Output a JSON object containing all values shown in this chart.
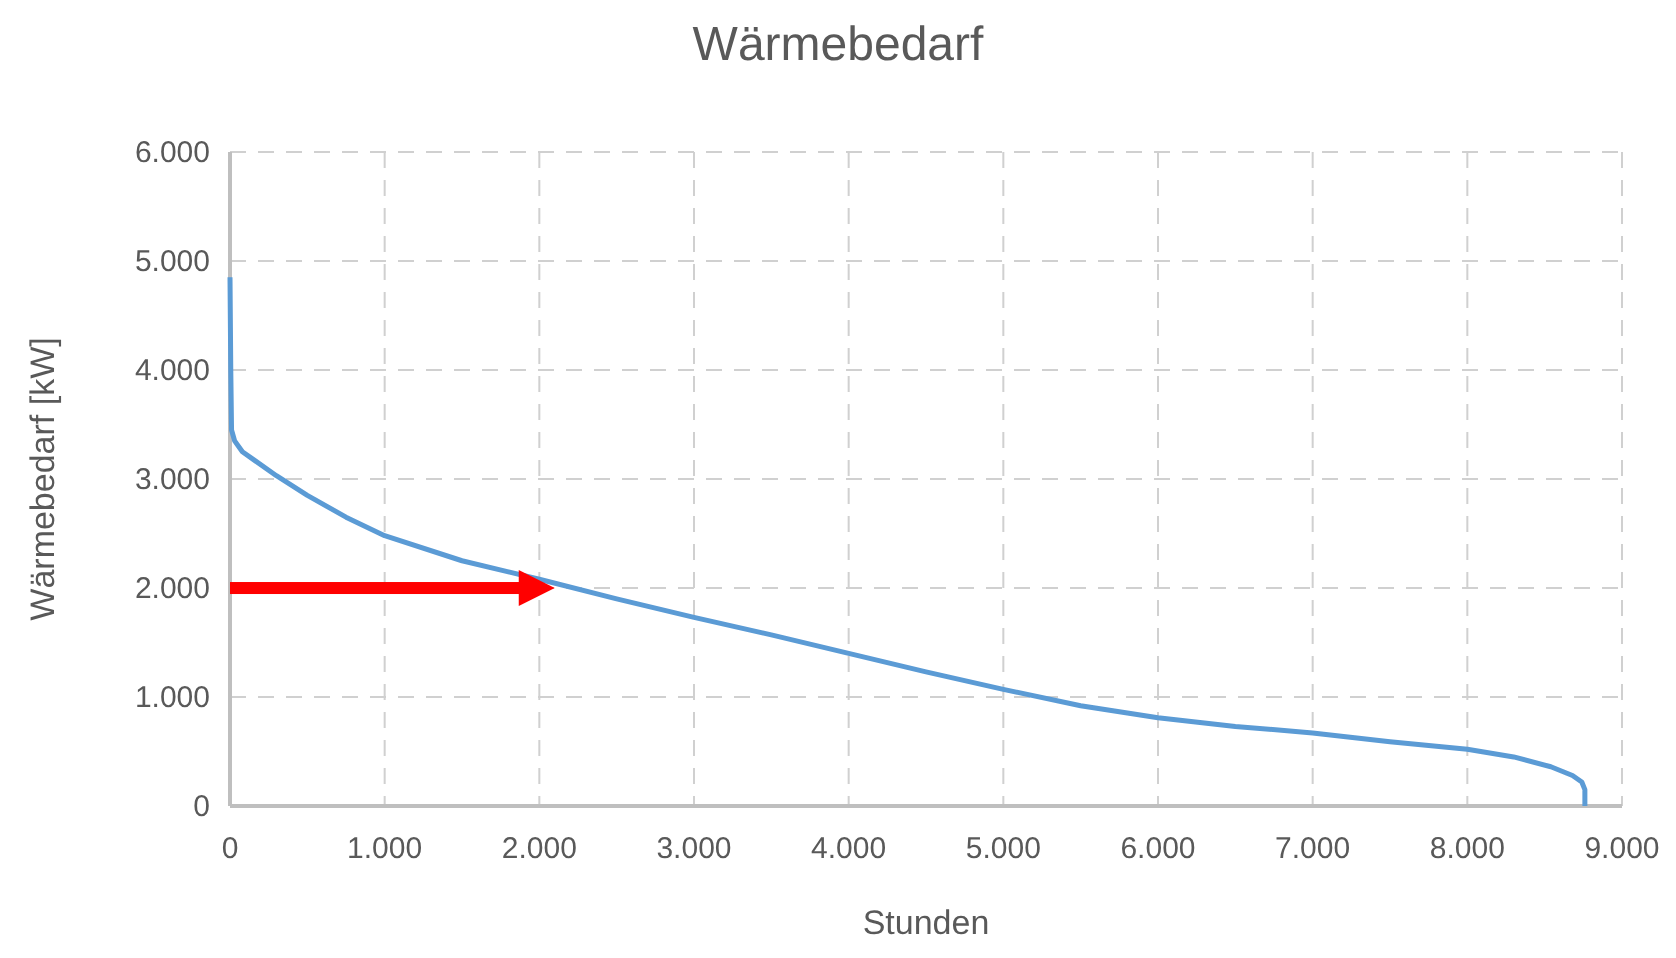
{
  "chart_data": {
    "type": "line",
    "title": "Wärmebedarf",
    "xlabel": "Stunden",
    "ylabel": "Wärmebedarf [kW]",
    "x": [
      0,
      5,
      10,
      30,
      80,
      150,
      300,
      500,
      750,
      1000,
      1500,
      2000,
      2500,
      3000,
      3500,
      4000,
      4500,
      5000,
      5500,
      6000,
      6500,
      7000,
      7500,
      8000,
      8300,
      8540,
      8680,
      8740,
      8760,
      8760
    ],
    "series": [
      {
        "color": "#5b9bd5",
        "values": [
          4850,
          4000,
          3450,
          3350,
          3250,
          3180,
          3030,
          2850,
          2650,
          2480,
          2250,
          2080,
          1900,
          1730,
          1570,
          1400,
          1230,
          1070,
          920,
          810,
          730,
          670,
          590,
          520,
          450,
          360,
          280,
          220,
          150,
          0
        ]
      }
    ],
    "xlim": [
      0,
      9000
    ],
    "xticks": [
      {
        "value": 0,
        "label": "0"
      },
      {
        "value": 1000,
        "label": "1.000"
      },
      {
        "value": 2000,
        "label": "2.000"
      },
      {
        "value": 3000,
        "label": "3.000"
      },
      {
        "value": 4000,
        "label": "4.000"
      },
      {
        "value": 5000,
        "label": "5.000"
      },
      {
        "value": 6000,
        "label": "6.000"
      },
      {
        "value": 7000,
        "label": "7.000"
      },
      {
        "value": 8000,
        "label": "8.000"
      },
      {
        "value": 9000,
        "label": "9.000"
      }
    ],
    "ylim": [
      0,
      6000
    ],
    "yticks": [
      {
        "value": 0,
        "label": "0"
      },
      {
        "value": 1000,
        "label": "1.000"
      },
      {
        "value": 2000,
        "label": "2.000"
      },
      {
        "value": 3000,
        "label": "3.000"
      },
      {
        "value": 4000,
        "label": "4.000"
      },
      {
        "value": 5000,
        "label": "5.000"
      },
      {
        "value": 6000,
        "label": "6.000"
      }
    ],
    "grid": true,
    "marker": "none",
    "line_style": "solid"
  }
}
